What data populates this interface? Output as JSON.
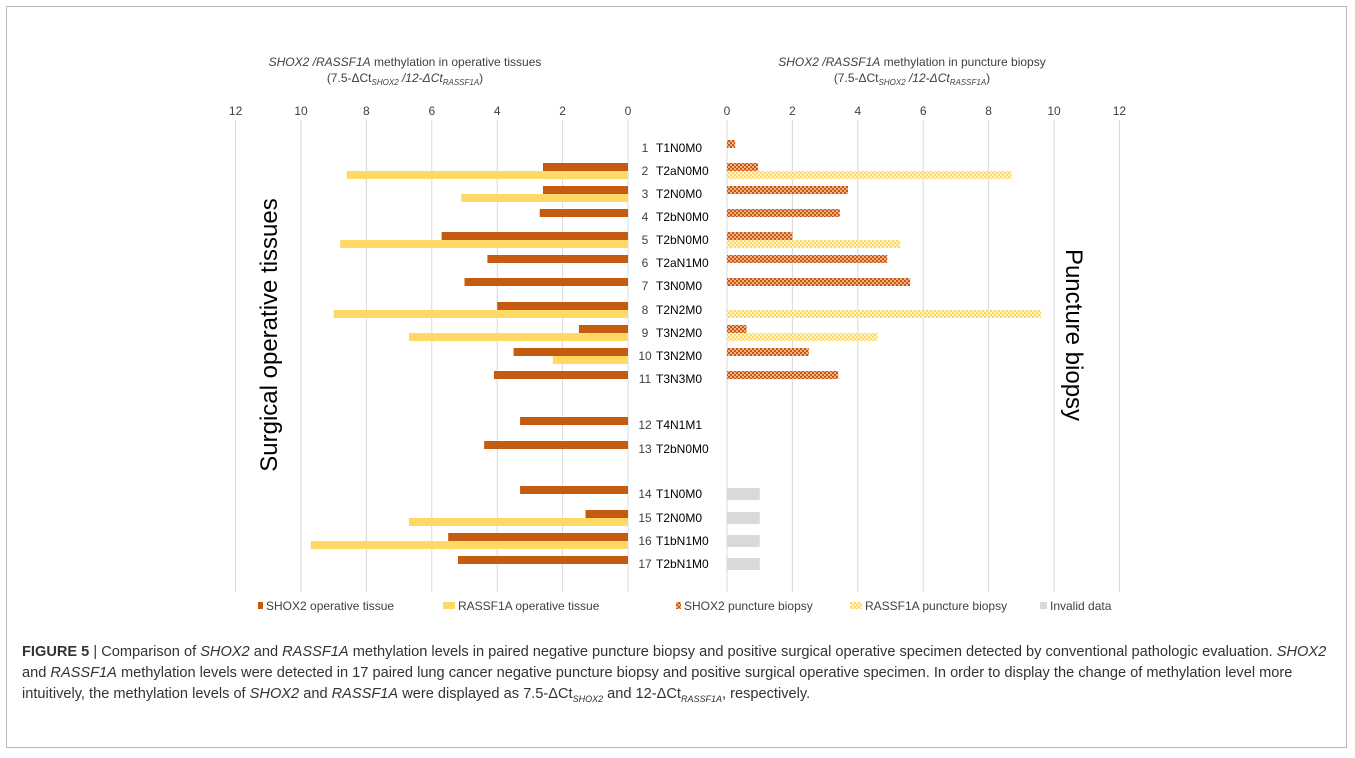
{
  "chart_data": [
    {
      "type": "bar",
      "orientation": "horizontal",
      "direction": "reversed",
      "title": "SHOX2 /RASSF1A methylation in operative tissues",
      "subtitle": "(7.5-ΔCtSHOX2/12-ΔCtRASSF1A)",
      "side_label": "Surgical operative tissues",
      "xlim": [
        0,
        12
      ],
      "xticks": [
        "12",
        "10",
        "8",
        "6",
        "4",
        "2",
        "0"
      ],
      "categories": [
        "1",
        "2",
        "3",
        "4",
        "5",
        "6",
        "7",
        "8",
        "9",
        "10",
        "11",
        "12",
        "13",
        "14",
        "15",
        "16",
        "17"
      ],
      "series": [
        {
          "name": "SHOX2 operative tissue",
          "color": "#c55a11",
          "values": [
            null,
            2.6,
            2.6,
            2.7,
            5.7,
            4.3,
            5.0,
            4.0,
            1.5,
            3.5,
            4.1,
            3.3,
            4.4,
            3.3,
            1.3,
            5.5,
            5.2
          ]
        },
        {
          "name": "RASSF1A operative tissue",
          "color": "#ffd966",
          "values": [
            null,
            8.6,
            5.1,
            null,
            8.8,
            null,
            null,
            9.0,
            6.7,
            2.3,
            null,
            null,
            null,
            null,
            6.7,
            9.7,
            null
          ]
        }
      ]
    },
    {
      "type": "bar",
      "orientation": "horizontal",
      "title": "SHOX2 /RASSF1A methylation in puncture biopsy",
      "subtitle": "(7.5-ΔCtSHOX2/12-ΔCtRASSF1A)",
      "side_label": "Puncture biopsy",
      "xlim": [
        0,
        12
      ],
      "xticks": [
        "0",
        "2",
        "4",
        "6",
        "8",
        "10",
        "12"
      ],
      "categories": [
        "1",
        "2",
        "3",
        "4",
        "5",
        "6",
        "7",
        "8",
        "9",
        "10",
        "11",
        "12",
        "13",
        "14",
        "15",
        "16",
        "17"
      ],
      "series": [
        {
          "name": "SHOX2 puncture biopsy",
          "color": "#c55a11",
          "pattern": "checker",
          "values": [
            0.25,
            0.95,
            3.7,
            3.45,
            2.0,
            4.9,
            5.6,
            null,
            0.6,
            2.5,
            3.4,
            null,
            null,
            null,
            null,
            null,
            null
          ]
        },
        {
          "name": "RASSF1A puncture biopsy",
          "color": "#ffd966",
          "pattern": "checker",
          "values": [
            null,
            8.7,
            null,
            null,
            5.3,
            null,
            null,
            9.6,
            4.6,
            null,
            null,
            null,
            null,
            null,
            null,
            null,
            null
          ]
        },
        {
          "name": "Invalid data",
          "color": "#d9d9d9",
          "values": [
            null,
            null,
            null,
            null,
            null,
            null,
            null,
            null,
            null,
            null,
            null,
            null,
            null,
            1.0,
            1.0,
            1.0,
            1.0
          ]
        }
      ]
    }
  ],
  "rows": [
    {
      "num": "1",
      "stage": "T1N0M0"
    },
    {
      "num": "2",
      "stage": "T2aN0M0"
    },
    {
      "num": "3",
      "stage": "T2N0M0"
    },
    {
      "num": "4",
      "stage": "T2bN0M0"
    },
    {
      "num": "5",
      "stage": "T2bN0M0"
    },
    {
      "num": "6",
      "stage": "T2aN1M0"
    },
    {
      "num": "7",
      "stage": "T3N0M0"
    },
    {
      "num": "8",
      "stage": "T2N2M0"
    },
    {
      "num": "9",
      "stage": "T3N2M0"
    },
    {
      "num": "10",
      "stage": "T3N2M0"
    },
    {
      "num": "11",
      "stage": "T3N3M0"
    },
    {
      "num": "12",
      "stage": "T4N1M1"
    },
    {
      "num": "13",
      "stage": "T2bN0M0"
    },
    {
      "num": "14",
      "stage": "T1N0M0"
    },
    {
      "num": "15",
      "stage": "T2N0M0"
    },
    {
      "num": "16",
      "stage": "T1bN1M0"
    },
    {
      "num": "17",
      "stage": "T2bN1M0"
    }
  ],
  "titles": {
    "left_gene": "SHOX2 /RASSF1A",
    "left_rest": " methylation in operative tissues",
    "right_gene": "SHOX2 /RASSF1A",
    "right_rest": " methylation in puncture biopsy",
    "formula_a": "(7.5-ΔCt",
    "formula_sub1": "SHOX2",
    "formula_mid": " /12-ΔCt",
    "formula_sub2": "RASSF1A",
    "formula_end": ")"
  },
  "legend": [
    {
      "key": "SHOX2 operative tissue",
      "label": "SHOX2 operative tissue",
      "color": "#c55a11",
      "pattern": "solid"
    },
    {
      "key": "RASSF1A operative tissue",
      "label": "RASSF1A operative tissue",
      "color": "#ffd966",
      "pattern": "solid"
    },
    {
      "key": "SHOX2 puncture biopsy",
      "label": "SHOX2 puncture biopsy",
      "color": "#c55a11",
      "pattern": "checker"
    },
    {
      "key": "RASSF1A puncture biopsy",
      "label": "RASSF1A puncture biopsy",
      "color": "#ffd966",
      "pattern": "checker"
    },
    {
      "key": "Invalid data",
      "label": "Invalid data",
      "color": "#d9d9d9",
      "pattern": "solid"
    }
  ],
  "caption": {
    "label": "FIGURE 5",
    "sep": " | ",
    "t1": "Comparison of ",
    "g1": "SHOX2",
    "t2": " and ",
    "g2": "RASSF1A",
    "t3": " methylation levels in paired negative puncture biopsy and positive surgical operative specimen detected by conventional pathologic evaluation. ",
    "g3": "SHOX2",
    "t4": " and ",
    "g4": "RASSF1A",
    "t5": " methylation levels were detected in 17 paired lung cancer negative puncture biopsy and positive surgical operative specimen. In order to display the change of methylation level more intuitively, the methylation levels of ",
    "g5": "SHOX2",
    "t6": " and ",
    "g6": "RASSF1A",
    "t7": " were displayed as 7.5-ΔCt",
    "s1": "SHOX2",
    "t8": " and 12-ΔCt",
    "s2": "RASSF1A",
    "t9": ", respectively."
  }
}
